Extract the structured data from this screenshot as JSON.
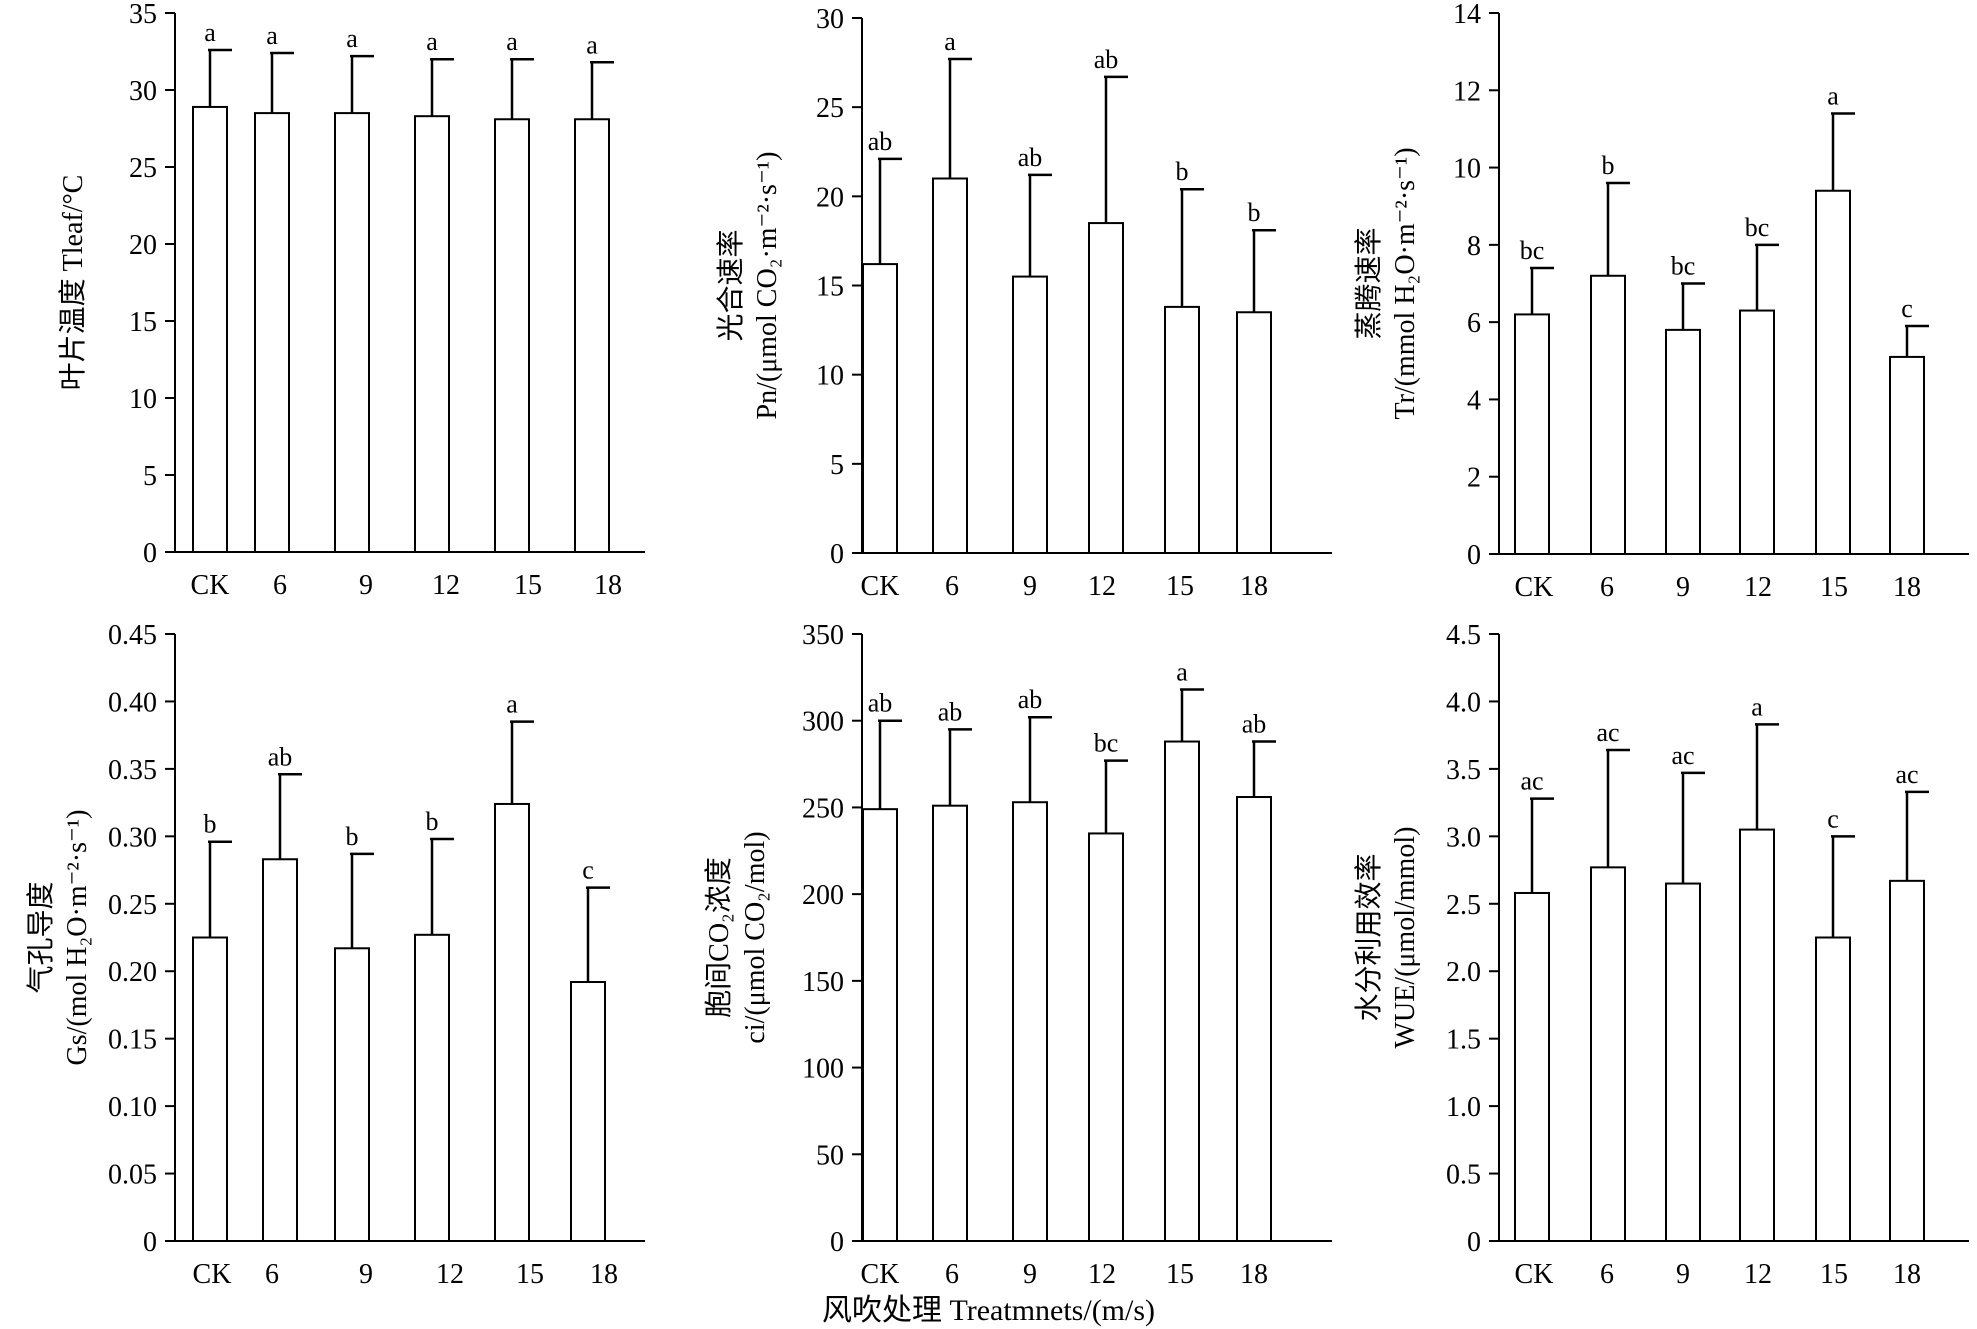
{
  "figure_xlabel": "风吹处理 Treatmnets/(m/s)",
  "chart_data": [
    {
      "type": "bar",
      "ylabel_lines": [
        "叶片温度 Tleaf/°C"
      ],
      "ylim": [
        0,
        35
      ],
      "yticks": [
        0,
        5,
        10,
        15,
        20,
        25,
        30,
        35
      ],
      "ytick_labels": [
        "0",
        "5",
        "10",
        "15",
        "20",
        "25",
        "30",
        "35"
      ],
      "categories": [
        "CK",
        "6",
        "9",
        "12",
        "15",
        "18"
      ],
      "values": [
        28.9,
        28.5,
        28.5,
        28.3,
        28.1,
        28.1
      ],
      "errors": [
        3.7,
        3.9,
        3.7,
        3.7,
        3.9,
        3.7
      ],
      "letters": [
        "a",
        "a",
        "a",
        "a",
        "a",
        "a"
      ]
    },
    {
      "type": "bar",
      "ylabel_lines": [
        "光合速率",
        "Pn/(μmol CO₂·m⁻²·s⁻¹)"
      ],
      "ylim": [
        0,
        30
      ],
      "yticks": [
        0,
        5,
        10,
        15,
        20,
        25,
        30
      ],
      "ytick_labels": [
        "0",
        "5",
        "10",
        "15",
        "20",
        "25",
        "30"
      ],
      "categories": [
        "CK",
        "6",
        "9",
        "12",
        "15",
        "18"
      ],
      "values": [
        16.2,
        21.0,
        15.5,
        18.5,
        13.8,
        13.5
      ],
      "errors": [
        5.9,
        6.7,
        5.7,
        8.2,
        6.6,
        4.6
      ],
      "letters": [
        "ab",
        "a",
        "ab",
        "ab",
        "b",
        "b"
      ]
    },
    {
      "type": "bar",
      "ylabel_lines": [
        "蒸腾速率",
        "Tr/(mmol H₂O·m⁻²·s⁻¹)"
      ],
      "ylim": [
        0,
        14
      ],
      "yticks": [
        0,
        2,
        4,
        6,
        8,
        10,
        12,
        14
      ],
      "ytick_labels": [
        "0",
        "2",
        "4",
        "6",
        "8",
        "10",
        "12",
        "14"
      ],
      "categories": [
        "CK",
        "6",
        "9",
        "12",
        "15",
        "18"
      ],
      "values": [
        6.2,
        7.2,
        5.8,
        6.3,
        9.4,
        5.1
      ],
      "errors": [
        1.2,
        2.4,
        1.2,
        1.7,
        2.0,
        0.8
      ],
      "letters": [
        "bc",
        "b",
        "bc",
        "bc",
        "a",
        "c"
      ]
    },
    {
      "type": "bar",
      "ylabel_lines": [
        "气孔导度",
        "Gs/(mol H₂O·m⁻²·s⁻¹)"
      ],
      "ylim": [
        0,
        0.45
      ],
      "yticks": [
        0,
        0.05,
        0.1,
        0.15,
        0.2,
        0.25,
        0.3,
        0.35,
        0.4,
        0.45
      ],
      "ytick_labels": [
        "0",
        "0.05",
        "0.10",
        "0.15",
        "0.20",
        "0.25",
        "0.30",
        "0.35",
        "0.40",
        "0.45"
      ],
      "categories": [
        "CK",
        "6",
        "9",
        "12",
        "15",
        "18"
      ],
      "values": [
        0.225,
        0.283,
        0.217,
        0.227,
        0.324,
        0.192
      ],
      "errors": [
        0.071,
        0.063,
        0.07,
        0.071,
        0.061,
        0.07
      ],
      "letters": [
        "b",
        "ab",
        "b",
        "b",
        "a",
        "c"
      ]
    },
    {
      "type": "bar",
      "ylabel_lines": [
        "胞间CO₂浓度",
        "ci/(μmol CO₂/mol)"
      ],
      "ylim": [
        0,
        350
      ],
      "yticks": [
        0,
        50,
        100,
        150,
        200,
        250,
        300,
        350
      ],
      "ytick_labels": [
        "0",
        "50",
        "100",
        "150",
        "200",
        "250",
        "300",
        "350"
      ],
      "categories": [
        "CK",
        "6",
        "9",
        "12",
        "15",
        "18"
      ],
      "values": [
        249,
        251,
        253,
        235,
        288,
        256
      ],
      "errors": [
        51,
        44,
        49,
        42,
        30,
        32
      ],
      "letters": [
        "ab",
        "ab",
        "ab",
        "bc",
        "a",
        "ab"
      ]
    },
    {
      "type": "bar",
      "ylabel_lines": [
        "水分利用效率",
        "WUE/(μmol/mmol)"
      ],
      "ylim": [
        0,
        4.5
      ],
      "yticks": [
        0,
        0.5,
        1,
        1.5,
        2,
        2.5,
        3,
        3.5,
        4,
        4.5
      ],
      "ytick_labels": [
        "0",
        "0.5",
        "1.0",
        "1.5",
        "2.0",
        "2.5",
        "3.0",
        "3.5",
        "4.0",
        "4.5"
      ],
      "categories": [
        "CK",
        "6",
        "9",
        "12",
        "15",
        "18"
      ],
      "values": [
        2.58,
        2.77,
        2.65,
        3.05,
        2.25,
        2.67
      ],
      "errors": [
        0.7,
        0.87,
        0.82,
        0.78,
        0.75,
        0.66
      ],
      "letters": [
        "ac",
        "ac",
        "ac",
        "a",
        "c",
        "ac"
      ]
    }
  ]
}
